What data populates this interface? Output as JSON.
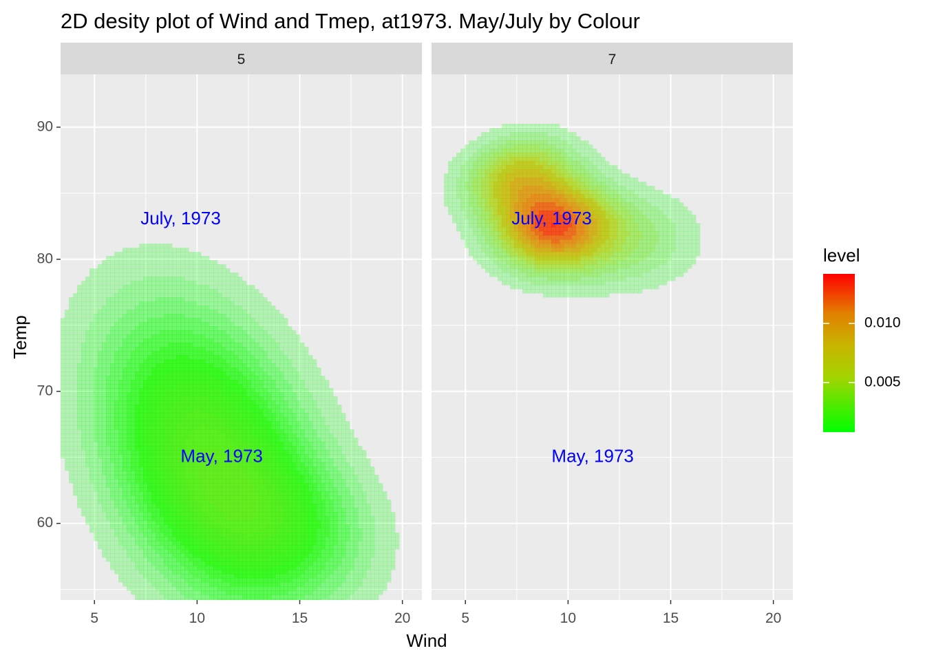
{
  "chart_data": {
    "type": "density2d",
    "title": "2D desity plot of Wind and Tmep, at1973. May/July by Colour",
    "xlabel": "Wind",
    "ylabel": "Temp",
    "xlim": [
      3.35,
      20.95
    ],
    "ylim": [
      54.2,
      94.0
    ],
    "x_ticks": [
      5,
      10,
      15,
      20
    ],
    "y_ticks": [
      60,
      70,
      80,
      90
    ],
    "x_tick_labels": [
      "5",
      "10",
      "15",
      "20"
    ],
    "y_tick_labels": [
      "60",
      "70",
      "80",
      "90"
    ],
    "grid": true,
    "panels": [
      {
        "strip": "5",
        "blobs": [
          {
            "wind": 10.6,
            "temp": 65.0,
            "sd_wind": 3.4,
            "sd_temp": 7.2,
            "rho": -0.35,
            "weight": 1.0
          },
          {
            "wind": 14.0,
            "temp": 60.0,
            "sd_wind": 3.0,
            "sd_temp": 3.5,
            "rho": -0.2,
            "weight": 0.35
          }
        ],
        "peak_level": 0.0032
      },
      {
        "strip": "7",
        "blobs": [
          {
            "wind": 9.2,
            "temp": 82.6,
            "sd_wind": 1.9,
            "sd_temp": 2.3,
            "rho": 0.0,
            "weight": 1.0
          },
          {
            "wind": 7.5,
            "temp": 86.5,
            "sd_wind": 1.8,
            "sd_temp": 2.0,
            "rho": 0.2,
            "weight": 0.5
          },
          {
            "wind": 13.0,
            "temp": 81.5,
            "sd_wind": 2.3,
            "sd_temp": 2.5,
            "rho": 0.0,
            "weight": 0.25
          },
          {
            "wind": 15.0,
            "temp": 91.0,
            "sd_wind": 0.8,
            "sd_temp": 0.9,
            "rho": 0.0,
            "weight": 0.05
          },
          {
            "wind": 14.6,
            "temp": 73.0,
            "sd_wind": 0.8,
            "sd_temp": 0.9,
            "rho": 0.0,
            "weight": 0.04
          },
          {
            "wind": 6.8,
            "temp": 74.0,
            "sd_wind": 0.8,
            "sd_temp": 0.9,
            "rho": 0.0,
            "weight": 0.04
          }
        ],
        "peak_level": 0.0138
      }
    ],
    "annotations": [
      {
        "text": "July, 1973",
        "wind": 9.2,
        "temp": 83.0,
        "color": "#0000FF"
      },
      {
        "text": "May, 1973",
        "wind": 11.2,
        "temp": 65.0,
        "color": "#0000FF"
      }
    ],
    "legend": {
      "title": "level",
      "position": "right",
      "range": [
        0.0008,
        0.0142
      ],
      "breaks": [
        0.005,
        0.01
      ],
      "break_labels": [
        "0.005",
        "0.010"
      ],
      "low_color": "#00FF00",
      "high_color": "#FF0000",
      "fill_alpha": 0.6
    },
    "colors": {
      "panel_bg": "#EBEBEB",
      "strip_bg": "#D9D9D9",
      "grid_major": "#FFFFFF",
      "text": "#000000",
      "tick_text": "#4D4D4D"
    }
  }
}
